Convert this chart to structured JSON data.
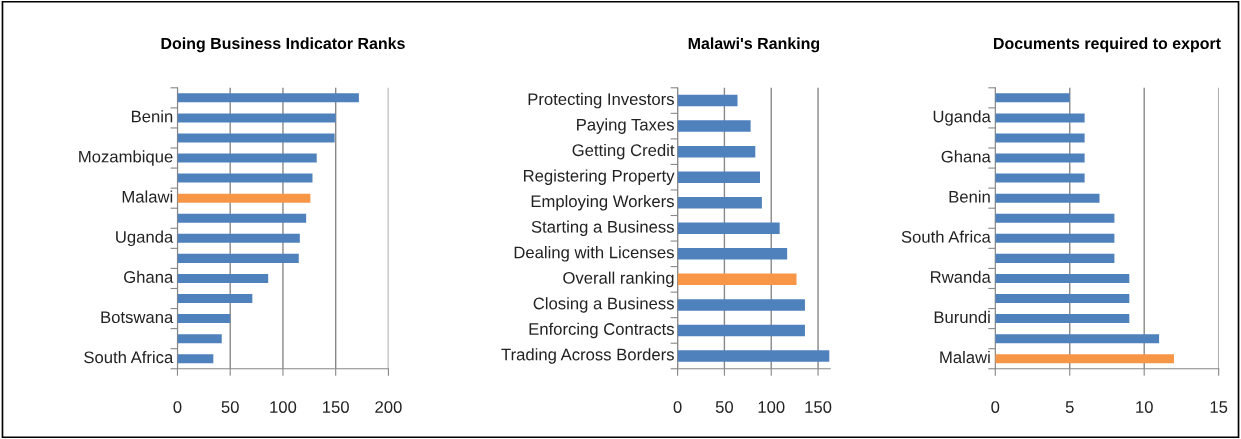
{
  "chart_data": [
    {
      "type": "bar",
      "orientation": "horizontal",
      "title": "Doing Business Indicator Ranks",
      "categories": [
        null,
        "Benin",
        null,
        "Mozambique",
        null,
        "Malawi",
        null,
        "Uganda",
        null,
        "Ghana",
        null,
        "Botswana",
        null,
        "South Africa"
      ],
      "values": [
        172,
        150,
        149,
        132,
        128,
        126,
        122,
        116,
        115,
        86,
        71,
        50,
        42,
        34
      ],
      "colors": [
        "#4f81bd",
        "#4f81bd",
        "#4f81bd",
        "#4f81bd",
        "#4f81bd",
        "#f79646",
        "#4f81bd",
        "#4f81bd",
        "#4f81bd",
        "#4f81bd",
        "#4f81bd",
        "#4f81bd",
        "#4f81bd",
        "#4f81bd"
      ],
      "xlim": [
        0,
        200
      ],
      "xticks": [
        0,
        50,
        100,
        150,
        200
      ],
      "grid": "x"
    },
    {
      "type": "bar",
      "orientation": "horizontal",
      "title": "Malawi's Ranking",
      "categories": [
        "Protecting Investors",
        "Paying Taxes",
        "Getting Credit",
        "Registering Property",
        "Employing Workers",
        "Starting a Business",
        "Dealing with Licenses",
        "Overall ranking",
        "Closing a Business",
        "Enforcing Contracts",
        "Trading Across Borders"
      ],
      "values": [
        64,
        78,
        83,
        88,
        90,
        109,
        117,
        127,
        136,
        136,
        162
      ],
      "colors": [
        "#4f81bd",
        "#4f81bd",
        "#4f81bd",
        "#4f81bd",
        "#4f81bd",
        "#4f81bd",
        "#4f81bd",
        "#f79646",
        "#4f81bd",
        "#4f81bd",
        "#4f81bd"
      ],
      "xlim": [
        0,
        163
      ],
      "xticks": [
        0,
        50,
        100,
        150
      ],
      "grid": "x"
    },
    {
      "type": "bar",
      "orientation": "horizontal",
      "title": "Documents required to export",
      "categories": [
        null,
        "Uganda",
        null,
        "Ghana",
        null,
        "Benin",
        null,
        "South Africa",
        null,
        "Rwanda",
        null,
        "Burundi",
        null,
        "Malawi"
      ],
      "values": [
        5,
        6,
        6,
        6,
        6,
        7,
        8,
        8,
        8,
        9,
        9,
        9,
        11,
        12
      ],
      "colors": [
        "#4f81bd",
        "#4f81bd",
        "#4f81bd",
        "#4f81bd",
        "#4f81bd",
        "#4f81bd",
        "#4f81bd",
        "#4f81bd",
        "#4f81bd",
        "#4f81bd",
        "#4f81bd",
        "#4f81bd",
        "#4f81bd",
        "#f79646"
      ],
      "xlim": [
        0,
        15
      ],
      "xticks": [
        0,
        5,
        10,
        15
      ],
      "grid": "x"
    }
  ]
}
